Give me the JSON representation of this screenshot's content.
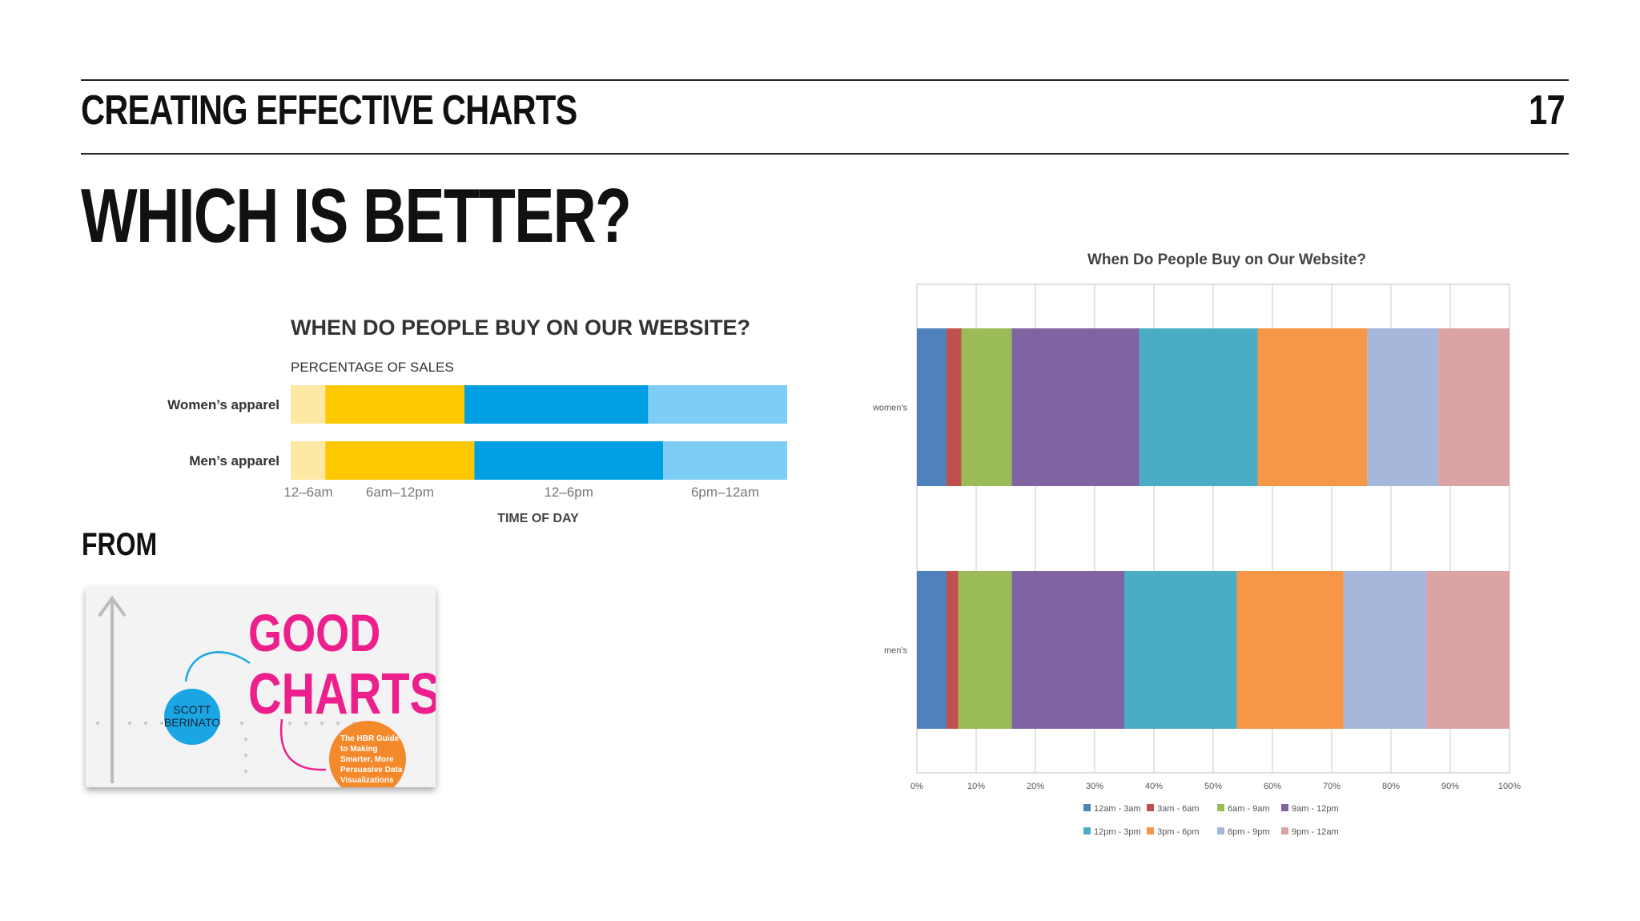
{
  "header": {
    "section_title": "CREATING EFFECTIVE CHARTS",
    "page_number": "17"
  },
  "slide_title": "WHICH IS BETTER?",
  "from_label": "FROM",
  "book": {
    "title_line1": "GOOD",
    "title_line2": "CHARTS",
    "author_line1": "SCOTT",
    "author_line2": "BERINATO",
    "subtitle_lines": [
      "The HBR Guide",
      "to Making",
      "Smarter, More",
      "Persuasive Data",
      "Visualizations"
    ],
    "colors": {
      "title": "#ec1f8c",
      "author_circle": "#1aa6e4",
      "subtitle_circle": "#f4892c"
    }
  },
  "chart_data": [
    {
      "type": "bar",
      "stacked": true,
      "orientation": "horizontal",
      "title": "WHEN DO PEOPLE BUY ON OUR WEBSITE?",
      "subtitle": "PERCENTAGE OF SALES",
      "xlabel": "TIME OF DAY",
      "categories": [
        "Women’s apparel",
        "Men’s apparel"
      ],
      "series": [
        {
          "name": "12–6am",
          "values": [
            7,
            7
          ],
          "color": "#fde9a3"
        },
        {
          "name": "6am–12pm",
          "values": [
            28,
            30
          ],
          "color": "#fdc800"
        },
        {
          "name": "12–6pm",
          "values": [
            37,
            38
          ],
          "color": "#009fe3"
        },
        {
          "name": "6pm–12am",
          "values": [
            28,
            25
          ],
          "color": "#7ecdf4"
        }
      ],
      "xlim": [
        0,
        100
      ],
      "tick_labels": [
        "12–6am",
        "6am–12pm",
        "12–6pm",
        "6pm–12am"
      ]
    },
    {
      "type": "bar",
      "stacked": true,
      "orientation": "horizontal",
      "title": "When Do People Buy on Our Website?",
      "categories": [
        "women's",
        "men's"
      ],
      "series": [
        {
          "name": "12am - 3am",
          "values": [
            5,
            5
          ],
          "color": "#4f81bd"
        },
        {
          "name": "3am - 6am",
          "values": [
            2.5,
            2
          ],
          "color": "#c0504d"
        },
        {
          "name": "6am - 9am",
          "values": [
            8.5,
            9
          ],
          "color": "#9bbb59"
        },
        {
          "name": "9am - 12pm",
          "values": [
            21.5,
            19
          ],
          "color": "#8064a2"
        },
        {
          "name": "12pm - 3pm",
          "values": [
            20,
            19
          ],
          "color": "#4bacc6"
        },
        {
          "name": "3pm - 6pm",
          "values": [
            18.5,
            18
          ],
          "color": "#f79646"
        },
        {
          "name": "6pm - 9pm",
          "values": [
            12,
            14
          ],
          "color": "#a5b7db"
        },
        {
          "name": "9pm - 12am",
          "values": [
            12,
            14
          ],
          "color": "#dba3a3"
        }
      ],
      "xlim": [
        0,
        100
      ],
      "xticks": [
        "0%",
        "10%",
        "20%",
        "30%",
        "40%",
        "50%",
        "60%",
        "70%",
        "80%",
        "90%",
        "100%"
      ],
      "grid": true,
      "legend": "bottom"
    }
  ]
}
